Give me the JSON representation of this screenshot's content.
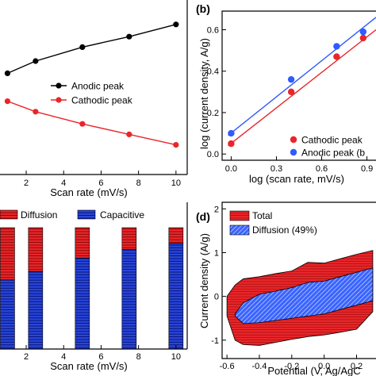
{
  "colors": {
    "black": "#000000",
    "red": "#e8262a",
    "blue": "#2945d8",
    "point_blue": "#2f5bff"
  },
  "chart_data": [
    {
      "panel": "a",
      "type": "line",
      "label": "",
      "xlabel": "Scan rate (mV/s)",
      "ylabel": "",
      "xticks": [
        "2",
        "4",
        "6",
        "8",
        "10"
      ],
      "xlim": [
        0.6,
        10.6
      ],
      "ylim": [
        0,
        1
      ],
      "series": [
        {
          "name": "Anodic peak",
          "color": "#000000",
          "x": [
            1,
            2.5,
            5,
            7.5,
            10
          ],
          "y": [
            0.58,
            0.65,
            0.73,
            0.79,
            0.86
          ]
        },
        {
          "name": "Cathodic peak",
          "color": "#e8262a",
          "x": [
            1,
            2.5,
            5,
            7.5,
            10
          ],
          "y": [
            0.42,
            0.36,
            0.29,
            0.23,
            0.17
          ]
        }
      ],
      "legend": "right"
    },
    {
      "panel": "b",
      "type": "scatter",
      "label": "(b)",
      "xlabel": "log (scan rate, mV/s)",
      "ylabel": "log (current density, A/g)",
      "xticks": [
        "0.0",
        "0.3",
        "0.6",
        "0.9"
      ],
      "yticks": [
        "0.0",
        "0.2",
        "0.4",
        "0.6"
      ],
      "xlim": [
        -0.06,
        0.96
      ],
      "ylim": [
        -0.03,
        0.69
      ],
      "series": [
        {
          "name": "Cathodic peak",
          "color": "#e8262a",
          "x": [
            0,
            0.398,
            0.699,
            0.875
          ],
          "y": [
            0.05,
            0.3,
            0.47,
            0.56
          ],
          "fit": [
            [
              -0.02,
              0.04
            ],
            [
              0.96,
              0.6
            ]
          ]
        },
        {
          "name": "Anodic peak (b",
          "color": "#2f5bff",
          "x": [
            0,
            0.398,
            0.699,
            0.875
          ],
          "y": [
            0.1,
            0.36,
            0.52,
            0.59
          ],
          "fit": [
            [
              -0.02,
              0.09
            ],
            [
              0.96,
              0.66
            ]
          ]
        }
      ],
      "legend": "bottom-right"
    },
    {
      "panel": "c",
      "type": "bar",
      "label": "",
      "xlabel": "Scan rate (mV/s)",
      "ylabel": "",
      "xticks": [
        "2",
        "4",
        "6",
        "8",
        "10"
      ],
      "xlim": [
        0.6,
        10.6
      ],
      "ylim": [
        0,
        100
      ],
      "stacked": true,
      "x": [
        1,
        2.5,
        5,
        7.5,
        10
      ],
      "series": [
        {
          "name": "Capacitive",
          "color": "#2945d8",
          "values": [
            57,
            64,
            75,
            82,
            87
          ]
        },
        {
          "name": "Diffusion",
          "color": "#e8262a",
          "values": [
            43,
            36,
            25,
            18,
            13
          ]
        }
      ],
      "legend_order": [
        "Diffusion",
        "Capacitive"
      ],
      "legend": "top"
    },
    {
      "panel": "d",
      "type": "area",
      "label": "(d)",
      "xlabel": "Potential (V, Ag/AgC",
      "ylabel": "Current density (A/g)",
      "xticks": [
        "-0.6",
        "-0.4",
        "-0.2",
        "0.0",
        "0.2"
      ],
      "yticks": [
        "-1",
        "0",
        "1",
        "2"
      ],
      "xlim": [
        -0.63,
        0.32
      ],
      "ylim": [
        -1.42,
        2.15
      ],
      "series": [
        {
          "name": "Total",
          "color": "#e8262a",
          "x": [
            -0.6,
            -0.55,
            -0.5,
            -0.4,
            -0.3,
            -0.2,
            -0.1,
            0.0,
            0.1,
            0.2,
            0.3
          ],
          "upper": [
            0.0,
            0.26,
            0.4,
            0.45,
            0.52,
            0.58,
            0.78,
            0.76,
            0.86,
            0.96,
            1.05
          ],
          "lower": [
            -0.45,
            -1.0,
            -1.1,
            -1.12,
            -1.05,
            -0.98,
            -0.92,
            -0.88,
            -0.82,
            -0.75,
            -0.35
          ]
        },
        {
          "name": "Diffusion (49%)",
          "color": "#2945d8",
          "x": [
            -0.55,
            -0.5,
            -0.4,
            -0.3,
            -0.2,
            -0.1,
            0.0,
            0.1,
            0.2,
            0.3
          ],
          "upper": [
            -0.4,
            -0.15,
            0.05,
            0.12,
            0.2,
            0.32,
            0.35,
            0.45,
            0.55,
            0.65
          ],
          "lower": [
            -0.45,
            -0.62,
            -0.6,
            -0.55,
            -0.5,
            -0.45,
            -0.4,
            -0.3,
            -0.2,
            -0.1
          ]
        }
      ],
      "legend": "top-left"
    }
  ]
}
